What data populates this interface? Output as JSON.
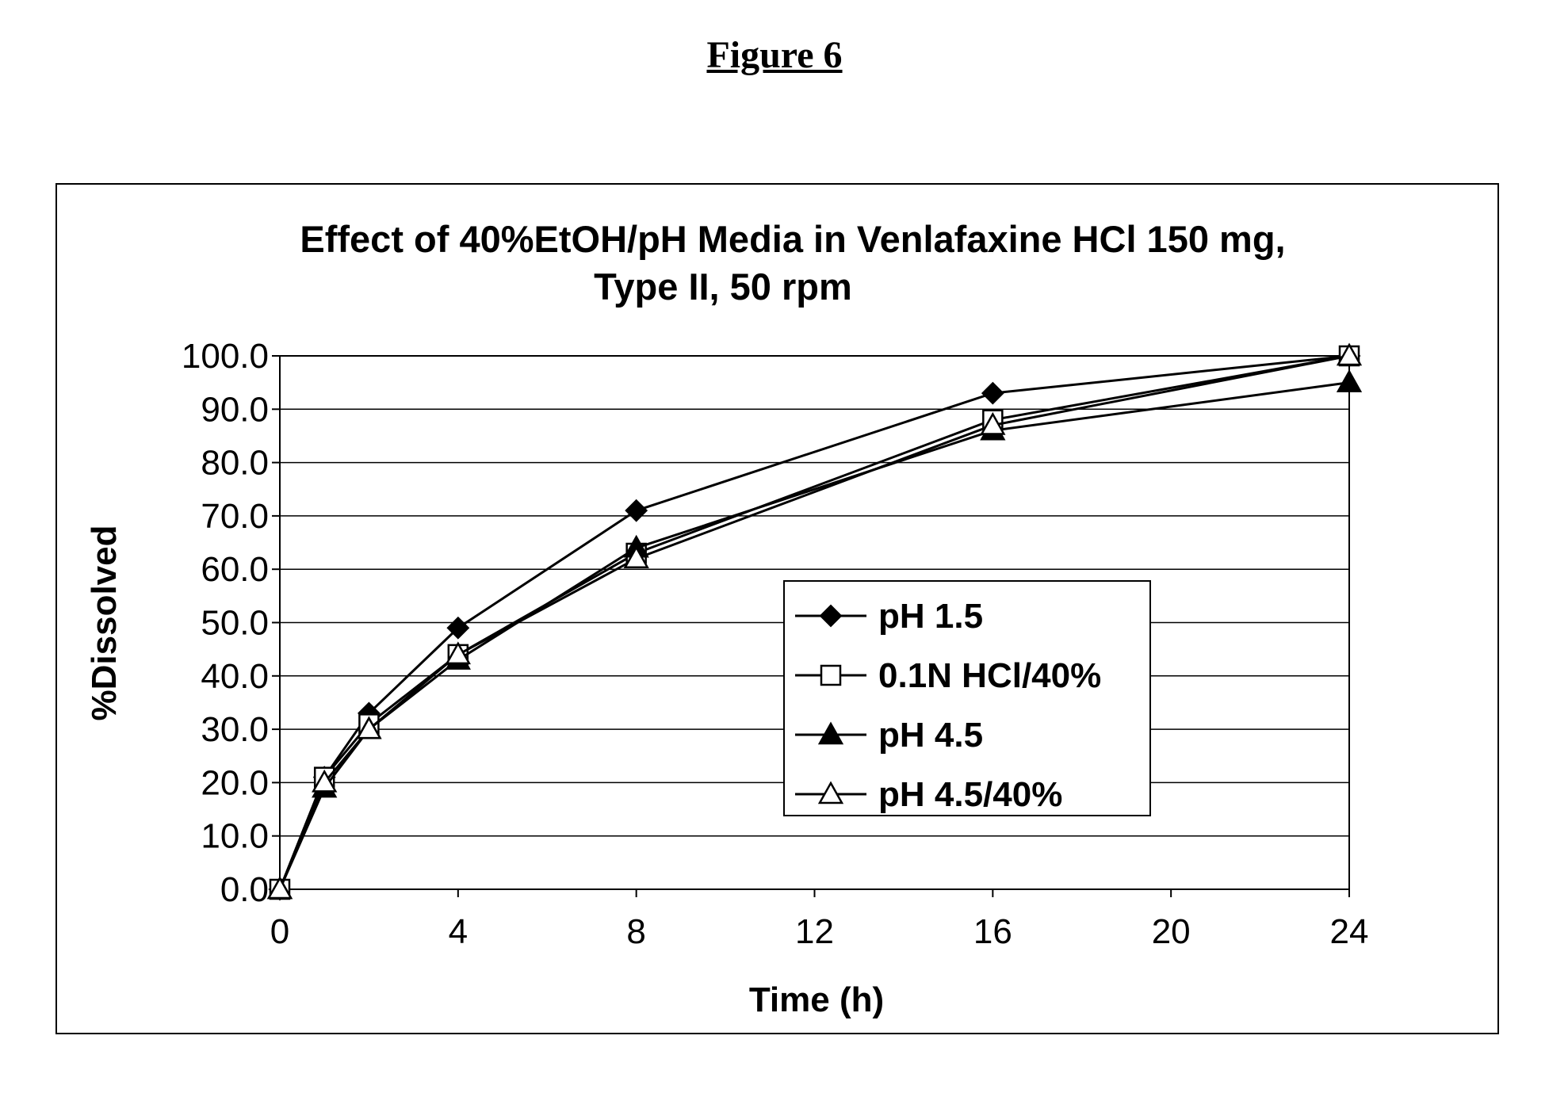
{
  "figure_caption": "Figure 6",
  "chart_data": {
    "type": "line",
    "title": "Effect of 40%EtOH/pH Media in Venlafaxine HCl 150 mg,",
    "subtitle": "Type II, 50 rpm",
    "xlabel": "Time (h)",
    "ylabel": "%Dissolved",
    "xlim": [
      0,
      24
    ],
    "ylim": [
      0,
      100
    ],
    "x_ticks": [
      0,
      4,
      8,
      12,
      16,
      20,
      24
    ],
    "y_ticks": [
      0,
      10,
      20,
      30,
      40,
      50,
      60,
      70,
      80,
      90,
      100
    ],
    "y_tick_labels": [
      "0.0",
      "10.0",
      "20.0",
      "30.0",
      "40.0",
      "50.0",
      "60.0",
      "70.0",
      "80.0",
      "90.0",
      "100.0"
    ],
    "grid": "horizontal",
    "legend_position": "lower-right inside plot",
    "x": [
      0,
      1,
      2,
      4,
      8,
      16,
      24
    ],
    "series": [
      {
        "name": "pH 1.5",
        "marker": "diamond-filled",
        "values": [
          0,
          21,
          33,
          49,
          71,
          93,
          100
        ]
      },
      {
        "name": "0.1N HCl/40%",
        "marker": "square-open",
        "values": [
          0,
          21,
          31,
          44,
          63,
          88,
          100
        ]
      },
      {
        "name": "pH 4.5",
        "marker": "triangle-filled",
        "values": [
          0,
          19,
          30,
          43,
          64,
          86,
          95
        ]
      },
      {
        "name": "pH 4.5/40%",
        "marker": "triangle-open",
        "values": [
          0,
          20,
          30,
          44,
          62,
          87,
          100
        ]
      }
    ]
  }
}
